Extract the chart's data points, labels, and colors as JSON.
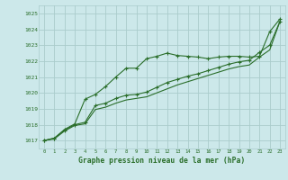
{
  "xlabel": "Graphe pression niveau de la mer (hPa)",
  "background_color": "#cce8ea",
  "grid_color": "#aacccc",
  "line_color": "#2a6e2a",
  "xlim": [
    -0.5,
    23.5
  ],
  "ylim": [
    1016.5,
    1025.5
  ],
  "yticks": [
    1017,
    1018,
    1019,
    1020,
    1021,
    1022,
    1023,
    1024,
    1025
  ],
  "xticks": [
    0,
    1,
    2,
    3,
    4,
    5,
    6,
    7,
    8,
    9,
    10,
    11,
    12,
    13,
    14,
    15,
    16,
    17,
    18,
    19,
    20,
    21,
    22,
    23
  ],
  "series1_x": [
    0,
    1,
    2,
    3,
    4,
    5,
    6,
    7,
    8,
    9,
    10,
    11,
    12,
    13,
    14,
    15,
    16,
    17,
    18,
    19,
    20,
    21,
    22,
    23
  ],
  "series1_y": [
    1017.0,
    1017.15,
    1017.7,
    1018.05,
    1019.6,
    1019.9,
    1020.4,
    1021.0,
    1021.55,
    1021.55,
    1022.15,
    1022.3,
    1022.5,
    1022.35,
    1022.3,
    1022.25,
    1022.15,
    1022.25,
    1022.3,
    1022.3,
    1022.25,
    1022.3,
    1023.85,
    1024.65
  ],
  "series2_x": [
    0,
    1,
    2,
    3,
    4,
    5,
    6,
    7,
    8,
    9,
    10,
    11,
    12,
    13,
    14,
    15,
    16,
    17,
    18,
    19,
    20,
    21,
    22,
    23
  ],
  "series2_y": [
    1017.0,
    1017.15,
    1017.65,
    1018.0,
    1018.15,
    1019.2,
    1019.35,
    1019.65,
    1019.85,
    1019.9,
    1020.05,
    1020.35,
    1020.65,
    1020.85,
    1021.05,
    1021.2,
    1021.4,
    1021.6,
    1021.8,
    1021.95,
    1022.05,
    1022.55,
    1023.0,
    1024.5
  ],
  "series3_x": [
    0,
    1,
    2,
    3,
    4,
    5,
    6,
    7,
    8,
    9,
    10,
    11,
    12,
    13,
    14,
    15,
    16,
    17,
    18,
    19,
    20,
    21,
    22,
    23
  ],
  "series3_y": [
    1017.0,
    1017.1,
    1017.6,
    1017.95,
    1018.05,
    1018.95,
    1019.1,
    1019.35,
    1019.55,
    1019.65,
    1019.75,
    1020.0,
    1020.25,
    1020.5,
    1020.7,
    1020.9,
    1021.1,
    1021.3,
    1021.5,
    1021.65,
    1021.75,
    1022.25,
    1022.7,
    1024.5
  ]
}
